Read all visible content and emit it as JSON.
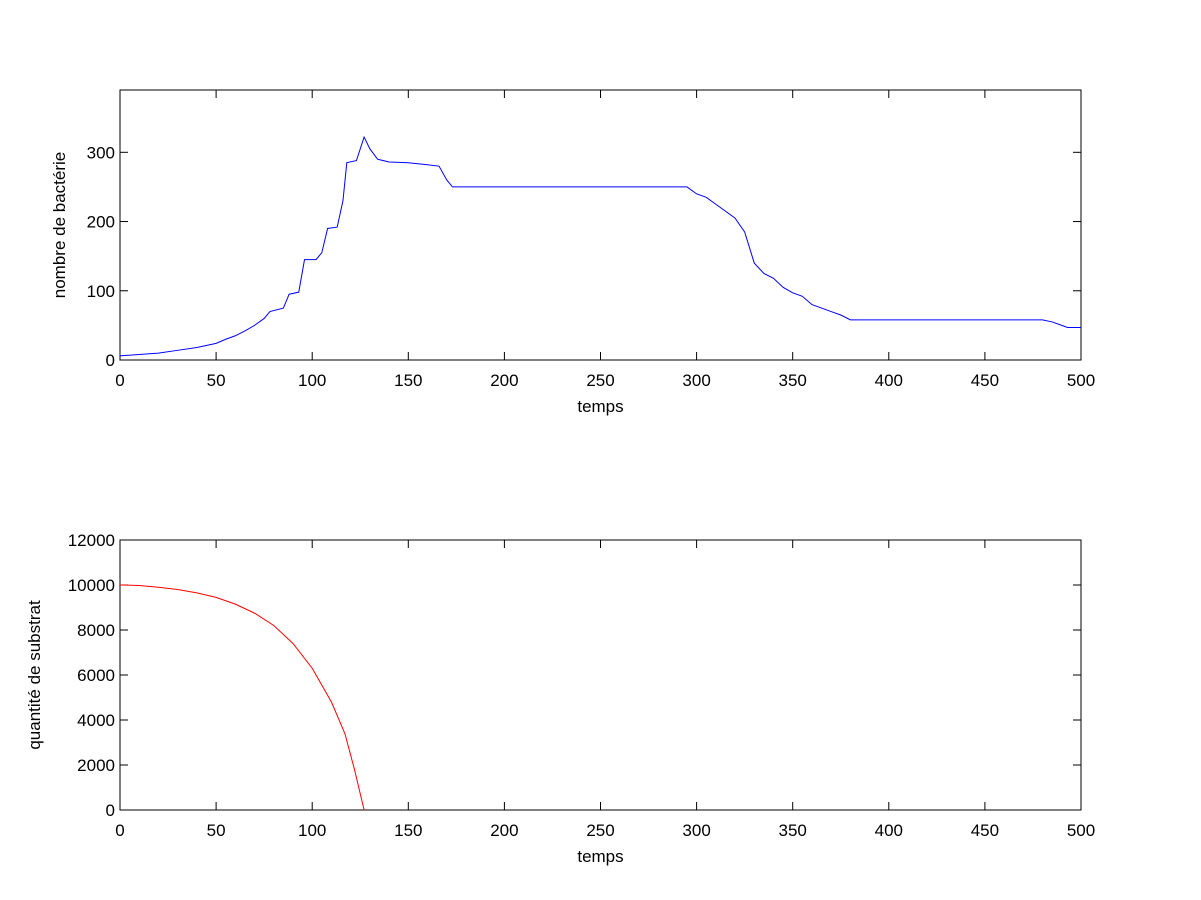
{
  "chart_data": [
    {
      "type": "line",
      "xlabel": "temps",
      "ylabel": "nombre de bactérie",
      "x": [
        0,
        10,
        20,
        30,
        40,
        50,
        55,
        60,
        65,
        70,
        75,
        78,
        85,
        88,
        93,
        96,
        102,
        105,
        108,
        113,
        116,
        118,
        123,
        127,
        130,
        134,
        140,
        150,
        160,
        166,
        170,
        173,
        200,
        250,
        295,
        300,
        305,
        310,
        315,
        320,
        325,
        330,
        335,
        340,
        345,
        350,
        355,
        360,
        365,
        370,
        375,
        380,
        400,
        450,
        480,
        485,
        490,
        493,
        500
      ],
      "values": [
        6,
        8,
        10,
        14,
        18,
        24,
        30,
        35,
        42,
        50,
        60,
        70,
        75,
        95,
        98,
        145,
        145,
        155,
        190,
        192,
        230,
        285,
        288,
        322,
        305,
        290,
        286,
        285,
        282,
        280,
        260,
        250,
        250,
        250,
        250,
        240,
        235,
        225,
        215,
        205,
        185,
        140,
        125,
        118,
        105,
        97,
        92,
        80,
        75,
        70,
        65,
        58,
        58,
        58,
        58,
        55,
        50,
        47,
        47
      ],
      "color": "#0000ff",
      "xlim": [
        0,
        500
      ],
      "xticks": [
        0,
        50,
        100,
        150,
        200,
        250,
        300,
        350,
        400,
        450,
        500
      ],
      "ylim": [
        0,
        390
      ],
      "yticks": [
        0,
        100,
        200,
        300
      ]
    },
    {
      "type": "line",
      "xlabel": "temps",
      "ylabel": "quantité de substrat",
      "x": [
        0,
        10,
        20,
        30,
        40,
        50,
        60,
        70,
        80,
        90,
        100,
        110,
        117,
        122,
        127
      ],
      "values": [
        10000,
        9980,
        9900,
        9800,
        9650,
        9450,
        9150,
        8750,
        8200,
        7400,
        6300,
        4800,
        3400,
        1800,
        0
      ],
      "color": "#ff0000",
      "xlim": [
        0,
        500
      ],
      "xticks": [
        0,
        50,
        100,
        150,
        200,
        250,
        300,
        350,
        400,
        450,
        500
      ],
      "ylim": [
        0,
        12000
      ],
      "yticks": [
        0,
        2000,
        4000,
        6000,
        8000,
        10000,
        12000
      ]
    }
  ]
}
